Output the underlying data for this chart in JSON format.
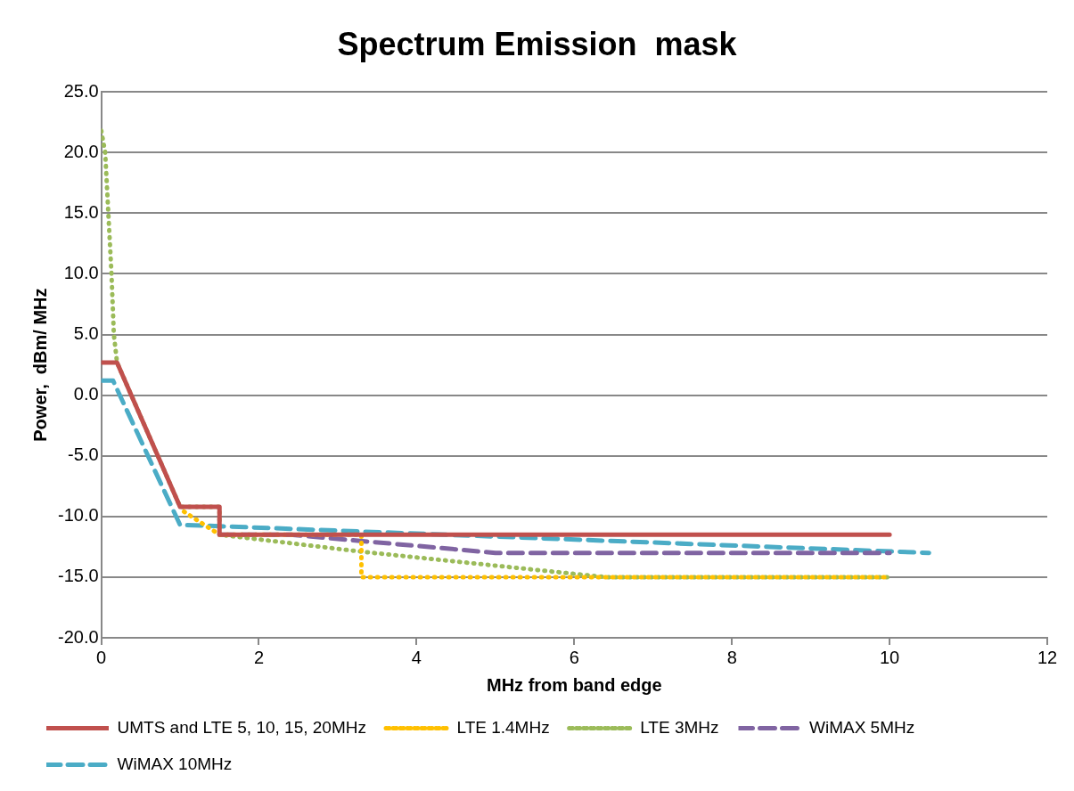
{
  "chart_data": {
    "type": "line",
    "title": "Spectrum Emission  mask",
    "xlabel": "MHz from band edge",
    "ylabel": "Power,  dBm/ MHz",
    "xlim": [
      0,
      12
    ],
    "xticks": [
      0,
      2,
      4,
      6,
      8,
      10,
      12
    ],
    "ylim": [
      -20,
      25
    ],
    "yticks": [
      {
        "value": -20,
        "label": "-20.0"
      },
      {
        "value": -15,
        "label": "-15.0"
      },
      {
        "value": -10,
        "label": "-10.0"
      },
      {
        "value": -5,
        "label": "-5.0"
      },
      {
        "value": 0,
        "label": "0.0"
      },
      {
        "value": 5,
        "label": "5.0"
      },
      {
        "value": 10,
        "label": "10.0"
      },
      {
        "value": 15,
        "label": "15.0"
      },
      {
        "value": 20,
        "label": "20.0"
      },
      {
        "value": 25,
        "label": "25.0"
      }
    ],
    "grid": "y",
    "legend": "bottom",
    "marker": "none",
    "series": [
      {
        "name": "UMTS and LTE 5, 10, 15, 20MHz",
        "color": "#c0504d",
        "line_style": "solid",
        "x": [
          0,
          0.2,
          1.0,
          1.5,
          1.5,
          10
        ],
        "values": [
          2.7,
          2.7,
          -9.2,
          -9.2,
          -11.5,
          -11.5
        ]
      },
      {
        "name": "LTE 1.4MHz",
        "color": "#ffc000",
        "line_style": "dotted",
        "x": [
          1.05,
          1.5,
          3.3,
          3.3,
          10
        ],
        "values": [
          -9.6,
          -11.5,
          -11.5,
          -15,
          -15
        ]
      },
      {
        "name": "LTE 3MHz",
        "color": "#9bbb59",
        "line_style": "dotted",
        "x": [
          0,
          0.05,
          0.09,
          0.13,
          0.16,
          0.2,
          1.0,
          1.5,
          1.5,
          3.3,
          6.4,
          10
        ],
        "values": [
          21.8,
          20,
          15,
          10,
          5,
          2.7,
          -9.2,
          -9.2,
          -11.5,
          -12.9,
          -15,
          -15
        ]
      },
      {
        "name": "WiMAX 5MHz",
        "color": "#8064a2",
        "line_style": "dashed",
        "x": [
          1.5,
          2.4,
          5.0,
          10
        ],
        "values": [
          -11.5,
          -11.5,
          -13,
          -13
        ]
      },
      {
        "name": "WiMAX 10MHz",
        "color": "#4bacc6",
        "line_style": "dashed",
        "x": [
          0,
          0.15,
          1.0,
          1.5,
          10.5
        ],
        "values": [
          1.2,
          1.2,
          -10.7,
          -10.8,
          -13
        ]
      }
    ]
  }
}
